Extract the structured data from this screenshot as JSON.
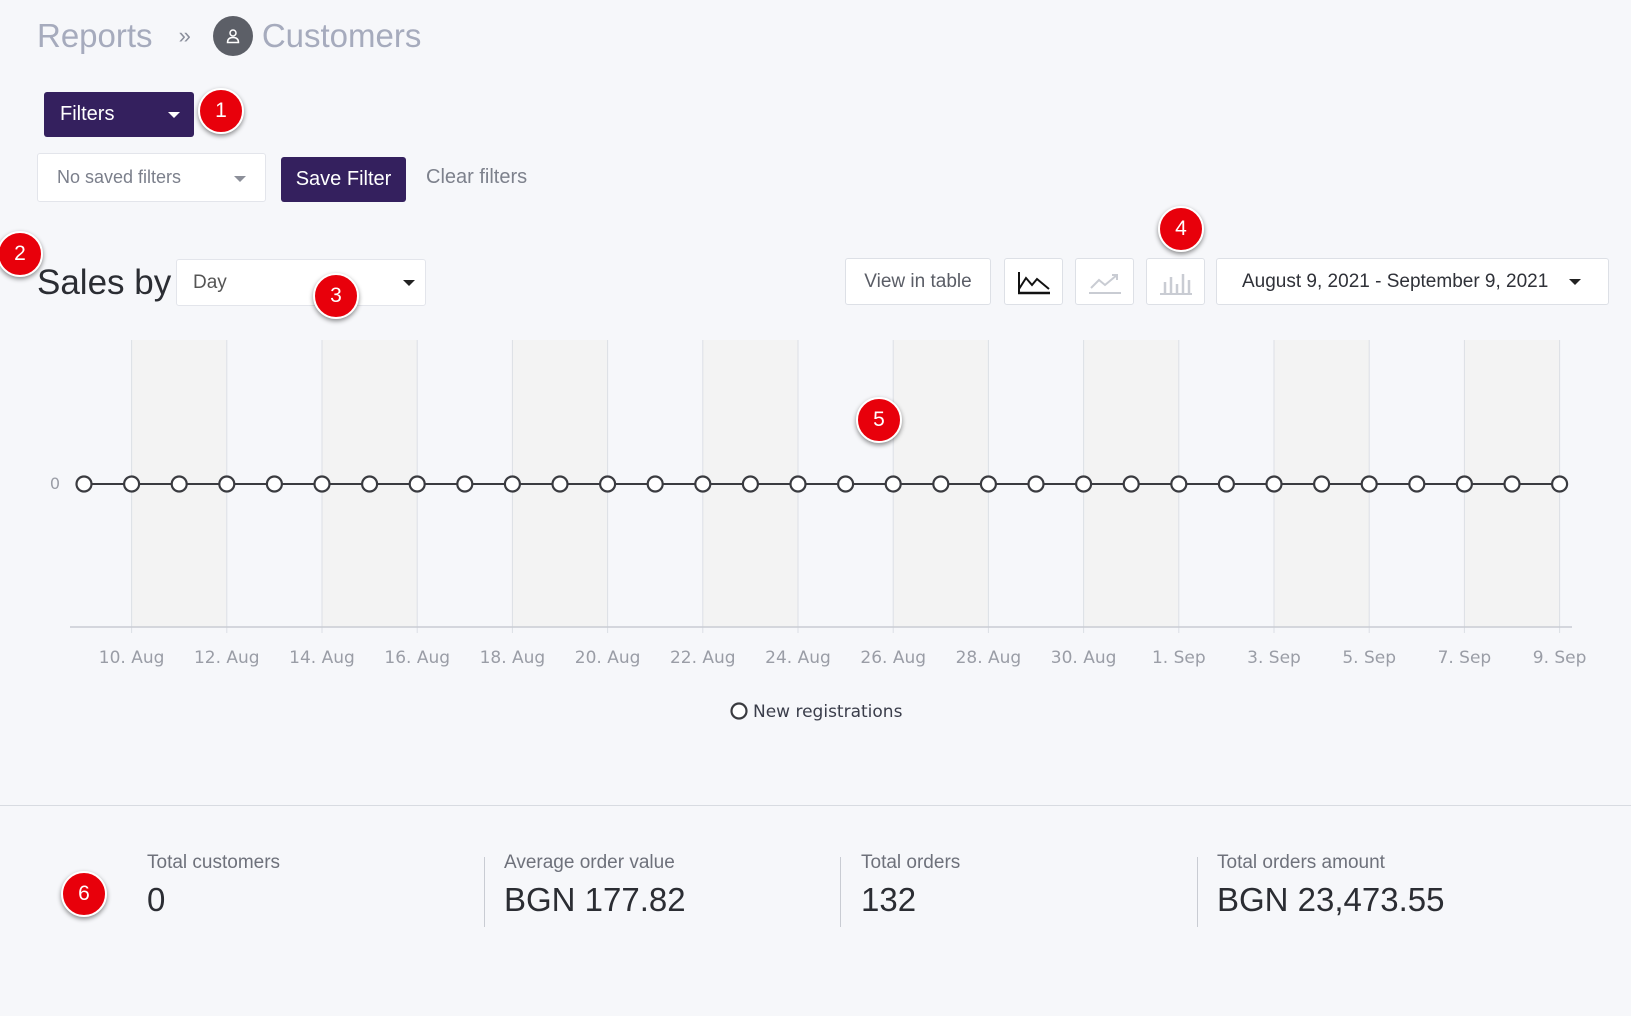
{
  "breadcrumb": {
    "parent": "Reports",
    "separator": "»",
    "current": "Customers"
  },
  "filters": {
    "filters_button": "Filters",
    "saved_filters_placeholder": "No saved filters",
    "save_filter_button": "Save Filter",
    "clear_filters_link": "Clear filters"
  },
  "sales_section": {
    "title": "Sales by",
    "period_select": "Day",
    "view_in_table": "View in table",
    "chart_type_buttons": [
      "area-chart-icon",
      "line-chart-icon",
      "bar-chart-icon"
    ],
    "date_range": "August 9, 2021 - September 9, 2021"
  },
  "chart_data": {
    "type": "line",
    "x": [
      "9. Aug",
      "10. Aug",
      "11. Aug",
      "12. Aug",
      "13. Aug",
      "14. Aug",
      "15. Aug",
      "16. Aug",
      "17. Aug",
      "18. Aug",
      "19. Aug",
      "20. Aug",
      "21. Aug",
      "22. Aug",
      "23. Aug",
      "24. Aug",
      "25. Aug",
      "26. Aug",
      "27. Aug",
      "28. Aug",
      "29. Aug",
      "30. Aug",
      "31. Aug",
      "1. Sep",
      "2. Sep",
      "3. Sep",
      "4. Sep",
      "5. Sep",
      "6. Sep",
      "7. Sep",
      "8. Sep",
      "9. Sep"
    ],
    "x_tick_labels": [
      "10. Aug",
      "12. Aug",
      "14. Aug",
      "16. Aug",
      "18. Aug",
      "20. Aug",
      "22. Aug",
      "24. Aug",
      "26. Aug",
      "28. Aug",
      "30. Aug",
      "1. Sep",
      "3. Sep",
      "5. Sep",
      "7. Sep",
      "9. Sep"
    ],
    "series": [
      {
        "name": "New registrations",
        "values": [
          0,
          0,
          0,
          0,
          0,
          0,
          0,
          0,
          0,
          0,
          0,
          0,
          0,
          0,
          0,
          0,
          0,
          0,
          0,
          0,
          0,
          0,
          0,
          0,
          0,
          0,
          0,
          0,
          0,
          0,
          0,
          0
        ]
      }
    ],
    "y_tick_labels": [
      "0"
    ],
    "grid": true,
    "legend_position": "bottom-center",
    "colors": {
      "line": "#3a3b40",
      "grid": "#dcdfe5",
      "band": "#f3f3f3"
    }
  },
  "stats": [
    {
      "label": "Total customers",
      "value": "0"
    },
    {
      "label": "Average order value",
      "value": "BGN 177.82"
    },
    {
      "label": "Total orders",
      "value": "132"
    },
    {
      "label": "Total orders amount",
      "value": "BGN 23,473.55"
    }
  ],
  "annotations": [
    "1",
    "2",
    "3",
    "4",
    "5",
    "6"
  ],
  "colors": {
    "brand": "#34205e",
    "badge": "#e8000b",
    "background": "#f6f7fa"
  }
}
